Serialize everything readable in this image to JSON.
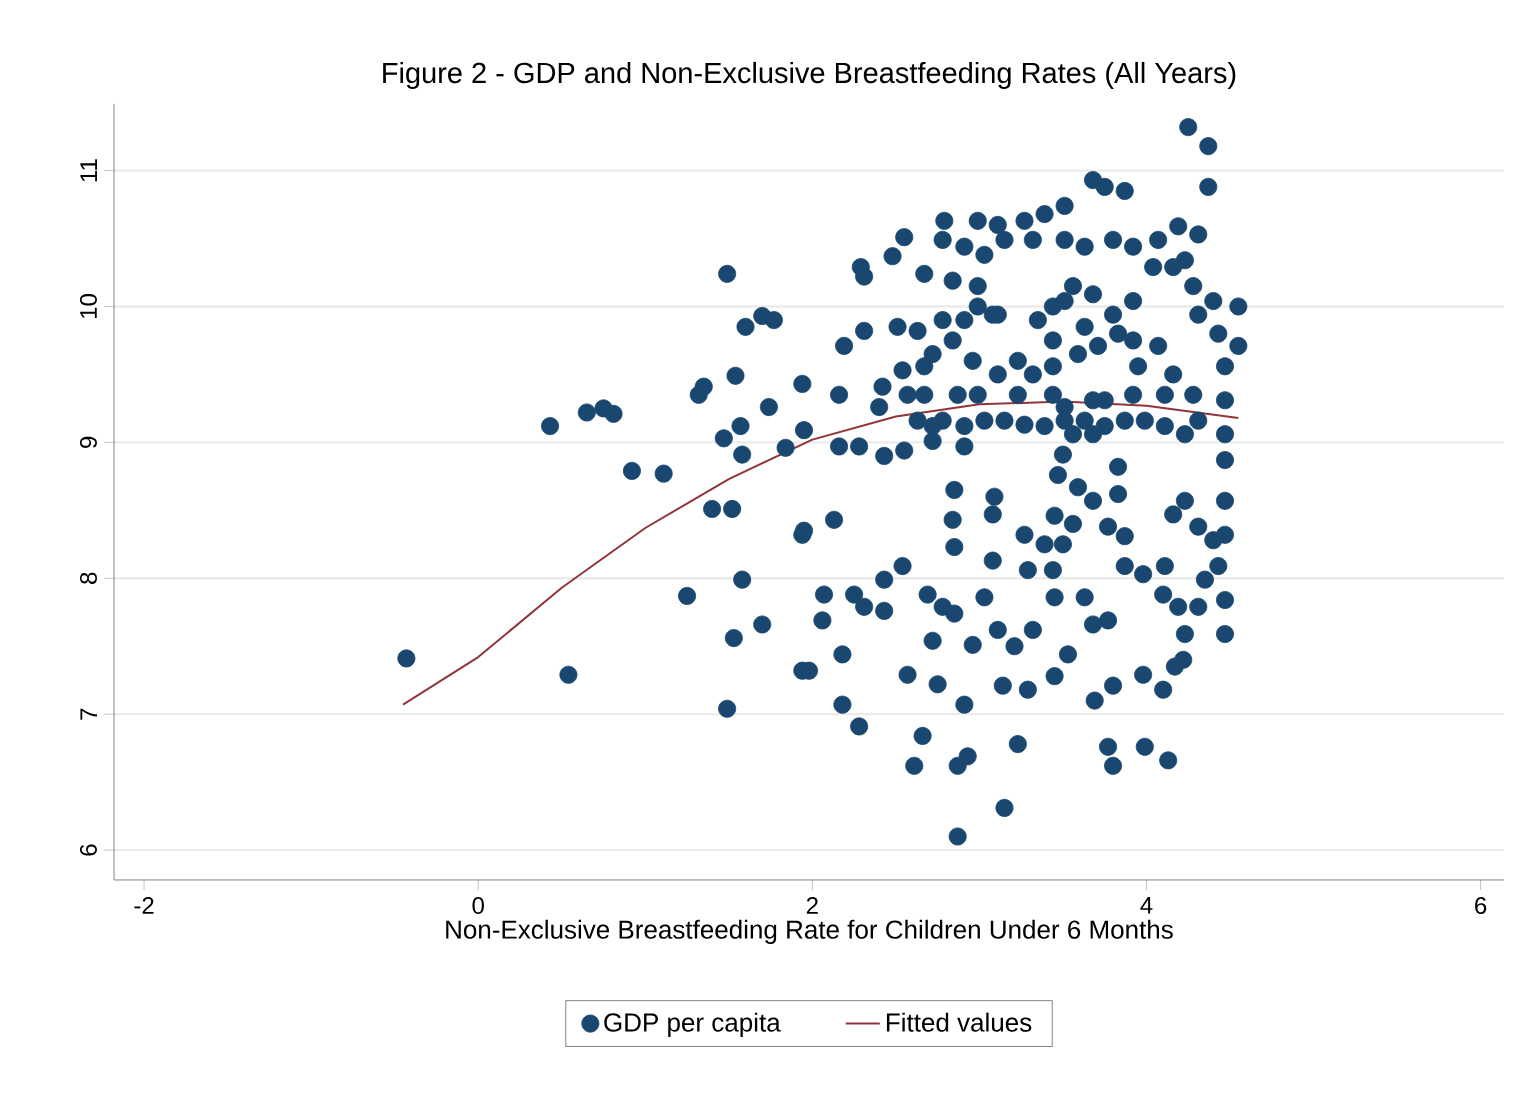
{
  "chart_data": {
    "type": "scatter",
    "title": "Figure 2 - GDP and Non-Exclusive Breastfeeding Rates (All Years)",
    "xlabel": "Non-Exclusive Breastfeeding Rate for Children Under 6 Months",
    "xlim": [
      -2.18,
      6.14
    ],
    "ylim": [
      5.78,
      11.49
    ],
    "xticks": [
      -2,
      0,
      2,
      4,
      6
    ],
    "yticks": [
      6,
      7,
      8,
      9,
      10,
      11
    ],
    "grid": "y",
    "legend": "bottom",
    "series": [
      {
        "name": "GDP per capita",
        "marker": "circle",
        "color": "#1a476f",
        "x": [
          -0.43,
          0.54,
          0.43,
          0.65,
          0.75,
          0.81,
          0.92,
          1.11,
          1.25,
          1.32,
          1.35,
          1.4,
          1.52,
          1.49,
          1.49,
          1.53,
          1.58,
          1.7,
          1.54,
          1.57,
          1.47,
          1.58,
          1.6,
          1.7,
          1.77,
          1.74,
          1.84,
          1.94,
          1.94,
          1.94,
          4.25,
          4.37,
          4.37,
          2.87,
          3.15,
          2.61,
          2.87,
          2.66,
          2.93,
          3.23,
          3.77,
          3.8,
          3.99,
          4.13,
          2.28,
          2.18,
          1.98,
          3.69,
          3.8,
          3.98,
          4.1,
          4.17,
          2.57,
          2.75,
          2.91,
          3.14,
          3.29,
          3.45,
          2.18,
          2.06,
          2.07,
          2.25,
          2.31,
          2.43,
          2.43,
          2.54,
          2.69,
          2.78,
          2.85,
          3.03,
          3.11,
          3.21,
          3.32,
          2.72,
          2.96,
          3.53,
          3.45,
          3.63,
          3.77,
          3.68,
          3.29,
          3.44,
          3.08,
          2.85,
          2.84,
          2.85,
          3.09,
          3.08,
          3.27,
          3.39,
          3.5,
          3.45,
          3.56,
          3.77,
          3.87,
          3.68,
          3.83,
          3.47,
          3.59,
          3.5,
          3.83,
          3.87,
          3.98,
          4.11,
          4.1,
          4.19,
          4.23,
          4.22,
          4.16,
          4.23,
          4.31,
          4.4,
          4.43,
          4.35,
          4.47,
          4.47,
          4.47,
          4.47,
          4.31,
          4.23,
          4.11,
          3.99,
          3.87,
          3.75,
          3.63,
          3.51,
          3.39,
          3.27,
          3.15,
          3.03,
          2.91,
          2.91,
          2.78,
          2.72,
          2.55,
          2.43,
          2.28,
          2.16,
          1.95,
          2.4,
          2.57,
          2.67,
          2.87,
          2.99,
          3.23,
          3.75,
          3.92,
          4.11,
          4.28,
          2.16,
          2.42,
          2.54,
          2.67,
          2.72,
          2.19,
          2.31,
          2.51,
          2.63,
          2.78,
          2.91,
          2.99,
          3.11,
          2.84,
          2.96,
          3.11,
          3.23,
          3.32,
          3.44,
          3.44,
          3.35,
          3.44,
          3.51,
          3.56,
          3.68,
          3.8,
          3.83,
          3.71,
          3.59,
          3.63,
          3.92,
          3.92,
          3.95,
          4.07,
          4.16,
          4.04,
          4.07,
          4.19,
          4.31,
          4.23,
          4.28,
          4.31,
          4.4,
          4.43,
          4.55,
          4.55,
          4.47,
          4.16,
          3.92,
          3.8,
          3.68,
          3.75,
          3.87,
          3.51,
          3.39,
          3.27,
          3.11,
          2.99,
          2.79,
          2.78,
          2.91,
          3.03,
          3.15,
          3.32,
          3.51,
          3.63,
          2.84,
          2.99,
          3.08,
          2.55,
          2.48,
          2.29,
          2.31,
          2.67,
          3.44,
          3.51,
          3.68,
          3.56,
          3.68,
          4.47,
          4.47,
          4.31,
          4.47,
          2.72,
          2.63,
          2.13,
          1.95
        ],
        "values": [
          7.41,
          7.29,
          9.12,
          9.22,
          9.25,
          9.21,
          8.79,
          8.77,
          7.87,
          9.35,
          9.41,
          8.51,
          8.51,
          10.24,
          7.04,
          7.56,
          7.99,
          7.66,
          9.49,
          9.12,
          9.03,
          8.91,
          9.85,
          9.93,
          9.9,
          9.26,
          8.96,
          8.32,
          7.32,
          9.43,
          11.32,
          11.18,
          10.88,
          6.1,
          6.31,
          6.62,
          6.62,
          6.84,
          6.69,
          6.78,
          6.76,
          6.62,
          6.76,
          6.66,
          6.91,
          7.07,
          7.32,
          7.1,
          7.21,
          7.29,
          7.18,
          7.35,
          7.29,
          7.22,
          7.07,
          7.21,
          7.18,
          7.28,
          7.44,
          7.69,
          7.88,
          7.88,
          7.79,
          7.76,
          7.99,
          8.09,
          7.88,
          7.79,
          7.74,
          7.86,
          7.62,
          7.5,
          7.62,
          7.54,
          7.51,
          7.44,
          7.86,
          7.86,
          7.69,
          7.66,
          8.06,
          8.06,
          8.13,
          8.23,
          8.43,
          8.65,
          8.6,
          8.47,
          8.32,
          8.25,
          8.25,
          8.46,
          8.4,
          8.38,
          8.31,
          8.57,
          8.62,
          8.76,
          8.67,
          8.91,
          8.82,
          8.09,
          8.03,
          8.09,
          7.88,
          7.79,
          7.59,
          7.4,
          8.47,
          8.57,
          8.38,
          8.28,
          8.09,
          7.99,
          8.57,
          8.87,
          9.06,
          8.32,
          9.16,
          9.06,
          9.12,
          9.16,
          9.16,
          9.12,
          9.16,
          9.16,
          9.12,
          9.13,
          9.16,
          9.16,
          9.12,
          8.97,
          9.16,
          9.01,
          8.94,
          8.9,
          8.97,
          8.97,
          9.09,
          9.26,
          9.35,
          9.35,
          9.35,
          9.35,
          9.35,
          9.31,
          9.35,
          9.35,
          9.35,
          9.35,
          9.41,
          9.53,
          9.56,
          9.65,
          9.71,
          9.82,
          9.85,
          9.82,
          9.9,
          9.9,
          10.0,
          9.94,
          9.75,
          9.6,
          9.5,
          9.6,
          9.5,
          9.56,
          9.75,
          9.9,
          10.0,
          10.04,
          10.15,
          10.09,
          9.94,
          9.8,
          9.71,
          9.65,
          9.85,
          10.04,
          9.75,
          9.56,
          9.71,
          9.5,
          10.29,
          10.49,
          10.59,
          10.53,
          10.34,
          10.15,
          9.94,
          10.04,
          9.8,
          10.0,
          9.71,
          9.56,
          10.29,
          10.44,
          10.49,
          10.93,
          10.88,
          10.85,
          10.74,
          10.68,
          10.63,
          10.6,
          10.63,
          10.63,
          10.49,
          10.44,
          10.38,
          10.49,
          10.49,
          10.49,
          10.44,
          10.19,
          10.15,
          9.94,
          10.51,
          10.37,
          10.29,
          10.22,
          10.24,
          9.35,
          9.26,
          9.31,
          9.06,
          9.06,
          9.31,
          7.84,
          7.79,
          7.59,
          9.12,
          9.16,
          8.43,
          8.35
        ]
      },
      {
        "name": "Fitted values",
        "type": "line",
        "marker": "none",
        "color": "#90353b",
        "x": [
          -0.45,
          0,
          0.5,
          1,
          1.5,
          2,
          2.5,
          3,
          3.5,
          4,
          4.55
        ],
        "values": [
          7.07,
          7.42,
          7.93,
          8.37,
          8.73,
          9.02,
          9.19,
          9.28,
          9.3,
          9.27,
          9.18
        ]
      }
    ]
  }
}
